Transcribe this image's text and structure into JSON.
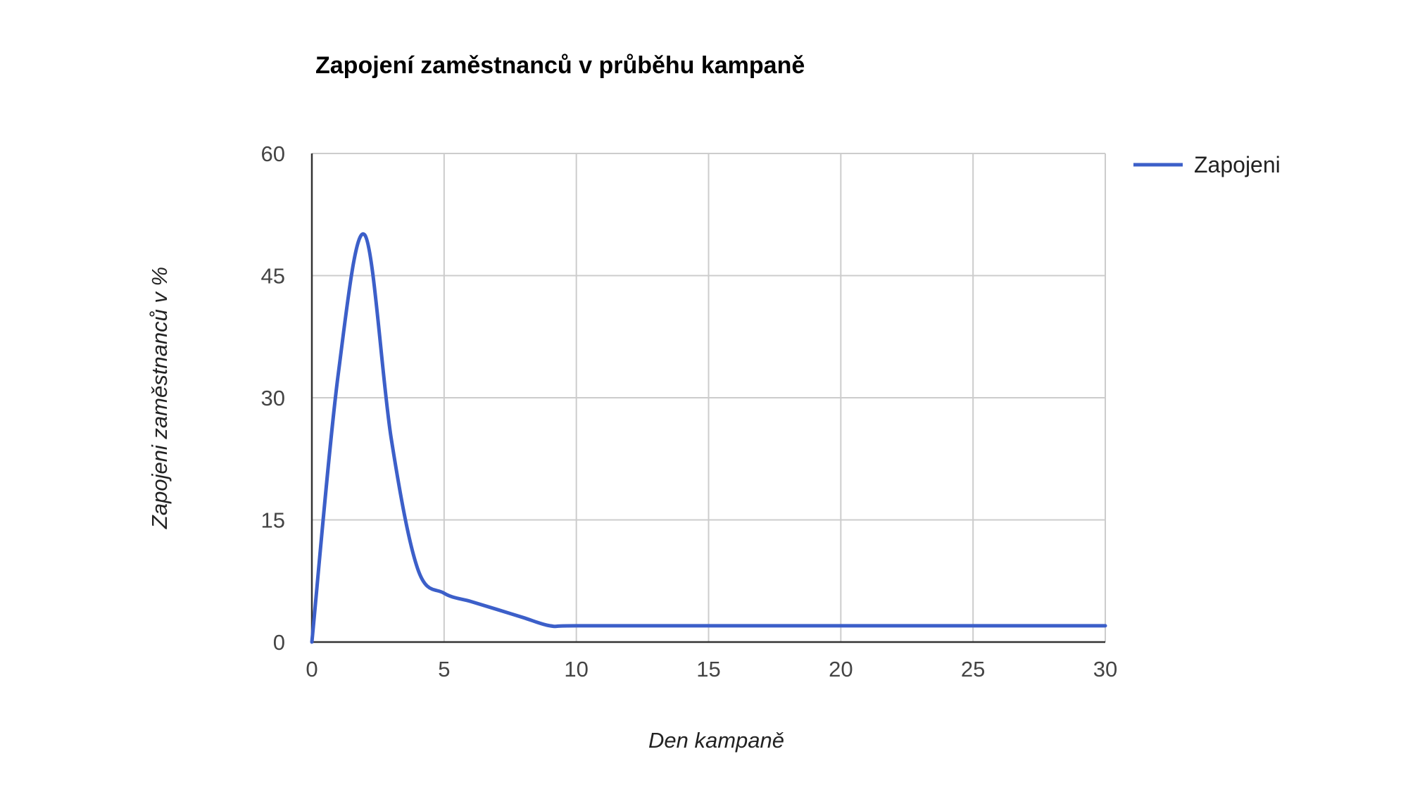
{
  "chart_data": {
    "type": "line",
    "title": "Zapojení zaměstnanců v průběhu kampaně",
    "xlabel": "Den kampaně",
    "ylabel": "Zapojeni zaměstnanců v %",
    "xlim": [
      0,
      30
    ],
    "ylim": [
      0,
      60
    ],
    "x_ticks": [
      0,
      5,
      10,
      15,
      20,
      25,
      30
    ],
    "y_ticks": [
      0,
      15,
      30,
      45,
      60
    ],
    "grid": true,
    "legend_position": "top-right",
    "series": [
      {
        "name": "Zapojeni",
        "color": "#3c5fc9",
        "x": [
          0,
          1,
          2,
          3,
          4,
          5,
          6,
          7,
          8,
          9,
          10,
          15,
          20,
          25,
          30
        ],
        "y": [
          0,
          33,
          50,
          25,
          9,
          6,
          5,
          4,
          3,
          2,
          2,
          2,
          2,
          2,
          2
        ]
      }
    ]
  }
}
